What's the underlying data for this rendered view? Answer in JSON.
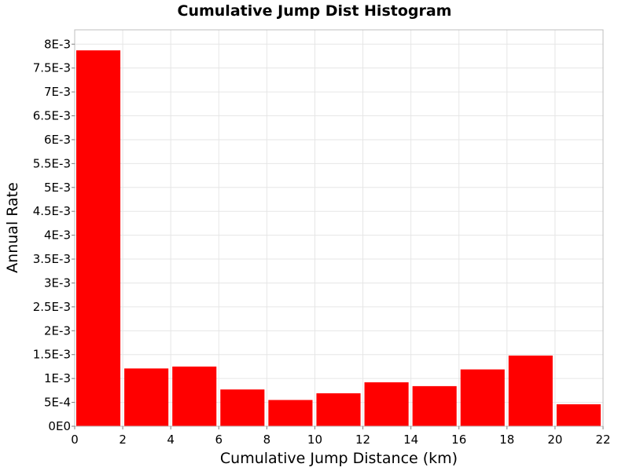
{
  "chart_data": {
    "type": "bar",
    "title": "Cumulative Jump Dist Histogram",
    "xlabel": "Cumulative Jump Distance (km)",
    "ylabel": "Annual Rate",
    "xlim": [
      0,
      22
    ],
    "ylim": [
      0,
      0.0083
    ],
    "grid": true,
    "bar_color": "#ff0000",
    "x_ticks": [
      {
        "value": 0,
        "label": "0"
      },
      {
        "value": 2,
        "label": "2"
      },
      {
        "value": 4,
        "label": "4"
      },
      {
        "value": 6,
        "label": "6"
      },
      {
        "value": 8,
        "label": "8"
      },
      {
        "value": 10,
        "label": "10"
      },
      {
        "value": 12,
        "label": "12"
      },
      {
        "value": 14,
        "label": "14"
      },
      {
        "value": 16,
        "label": "16"
      },
      {
        "value": 18,
        "label": "18"
      },
      {
        "value": 20,
        "label": "20"
      },
      {
        "value": 22,
        "label": "22"
      }
    ],
    "y_ticks": [
      {
        "value": 0,
        "label": "0E0"
      },
      {
        "value": 0.0005,
        "label": "5E-4"
      },
      {
        "value": 0.001,
        "label": "1E-3"
      },
      {
        "value": 0.0015,
        "label": "1.5E-3"
      },
      {
        "value": 0.002,
        "label": "2E-3"
      },
      {
        "value": 0.0025,
        "label": "2.5E-3"
      },
      {
        "value": 0.003,
        "label": "3E-3"
      },
      {
        "value": 0.0035,
        "label": "3.5E-3"
      },
      {
        "value": 0.004,
        "label": "4E-3"
      },
      {
        "value": 0.0045,
        "label": "4.5E-3"
      },
      {
        "value": 0.005,
        "label": "5E-3"
      },
      {
        "value": 0.0055,
        "label": "5.5E-3"
      },
      {
        "value": 0.006,
        "label": "6E-3"
      },
      {
        "value": 0.0065,
        "label": "6.5E-3"
      },
      {
        "value": 0.007,
        "label": "7E-3"
      },
      {
        "value": 0.0075,
        "label": "7.5E-3"
      },
      {
        "value": 0.008,
        "label": "8E-3"
      }
    ],
    "bars": [
      {
        "x0": 0,
        "x1": 2,
        "value": 0.00787
      },
      {
        "x0": 2,
        "x1": 4,
        "value": 0.00121
      },
      {
        "x0": 4,
        "x1": 6,
        "value": 0.00125
      },
      {
        "x0": 6,
        "x1": 8,
        "value": 0.00077
      },
      {
        "x0": 8,
        "x1": 10,
        "value": 0.00055
      },
      {
        "x0": 10,
        "x1": 12,
        "value": 0.00069
      },
      {
        "x0": 12,
        "x1": 14,
        "value": 0.00092
      },
      {
        "x0": 14,
        "x1": 16,
        "value": 0.00084
      },
      {
        "x0": 16,
        "x1": 18,
        "value": 0.00119
      },
      {
        "x0": 18,
        "x1": 20,
        "value": 0.00148
      },
      {
        "x0": 20,
        "x1": 22,
        "value": 0.00046
      }
    ]
  }
}
